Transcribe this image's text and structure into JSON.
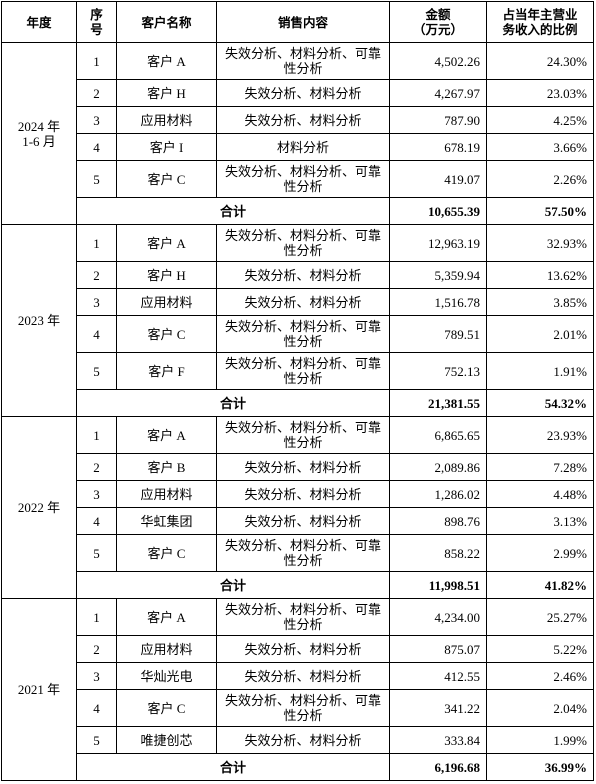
{
  "table": {
    "header": [
      "年度",
      "序\n号",
      "客户名称",
      "销售内容",
      "金额\n（万元）",
      "占当年主营业\n务收入的比例"
    ],
    "groups": [
      {
        "year": "2024 年\n1-6 月",
        "rows": [
          [
            "1",
            "客户 A",
            "失效分析、材料分析、可靠性分析",
            "4,502.26",
            "24.30%"
          ],
          [
            "2",
            "客户 H",
            "失效分析、材料分析",
            "4,267.97",
            "23.03%"
          ],
          [
            "3",
            "应用材料",
            "失效分析、材料分析",
            "787.90",
            "4.25%"
          ],
          [
            "4",
            "客户 I",
            "材料分析",
            "678.19",
            "3.66%"
          ],
          [
            "5",
            "客户 C",
            "失效分析、材料分析、可靠性分析",
            "419.07",
            "2.26%"
          ]
        ],
        "total": {
          "label": "合计",
          "amount": "10,655.39",
          "ratio": "57.50%"
        }
      },
      {
        "year": "2023 年",
        "rows": [
          [
            "1",
            "客户 A",
            "失效分析、材料分析、可靠性分析",
            "12,963.19",
            "32.93%"
          ],
          [
            "2",
            "客户 H",
            "失效分析、材料分析",
            "5,359.94",
            "13.62%"
          ],
          [
            "3",
            "应用材料",
            "失效分析、材料分析",
            "1,516.78",
            "3.85%"
          ],
          [
            "4",
            "客户 C",
            "失效分析、材料分析、可靠性分析",
            "789.51",
            "2.01%"
          ],
          [
            "5",
            "客户 F",
            "失效分析、材料分析、可靠性分析",
            "752.13",
            "1.91%"
          ]
        ],
        "total": {
          "label": "合计",
          "amount": "21,381.55",
          "ratio": "54.32%"
        }
      },
      {
        "year": "2022 年",
        "rows": [
          [
            "1",
            "客户 A",
            "失效分析、材料分析、可靠性分析",
            "6,865.65",
            "23.93%"
          ],
          [
            "2",
            "客户 B",
            "失效分析、材料分析",
            "2,089.86",
            "7.28%"
          ],
          [
            "3",
            "应用材料",
            "失效分析、材料分析",
            "1,286.02",
            "4.48%"
          ],
          [
            "4",
            "华虹集团",
            "失效分析、材料分析",
            "898.76",
            "3.13%"
          ],
          [
            "5",
            "客户 C",
            "失效分析、材料分析、可靠性分析",
            "858.22",
            "2.99%"
          ]
        ],
        "total": {
          "label": "合计",
          "amount": "11,998.51",
          "ratio": "41.82%"
        }
      },
      {
        "year": "2021 年",
        "rows": [
          [
            "1",
            "客户 A",
            "失效分析、材料分析、可靠性分析",
            "4,234.00",
            "25.27%"
          ],
          [
            "2",
            "应用材料",
            "失效分析、材料分析",
            "875.07",
            "5.22%"
          ],
          [
            "3",
            "华灿光电",
            "失效分析、材料分析",
            "412.55",
            "2.46%"
          ],
          [
            "4",
            "客户 C",
            "失效分析、材料分析、可靠性分析",
            "341.22",
            "2.04%"
          ],
          [
            "5",
            "唯捷创芯",
            "失效分析、材料分析",
            "333.84",
            "1.99%"
          ]
        ],
        "total": {
          "label": "合计",
          "amount": "6,196.68",
          "ratio": "36.99%"
        }
      }
    ]
  }
}
